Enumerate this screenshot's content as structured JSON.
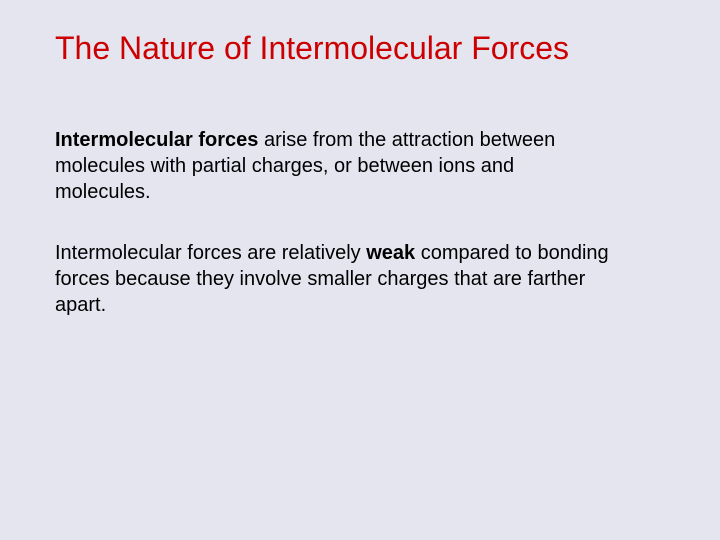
{
  "slide": {
    "title": "The Nature of Intermolecular Forces",
    "paragraph1": {
      "part1_bold": "Intermolecular forces",
      "part2": " arise from the attraction between molecules with partial charges, or between ions and molecules."
    },
    "paragraph2": {
      "part1": "Intermolecular forces are relatively ",
      "part2_bold": "weak",
      "part3": " compared to bonding forces because they involve smaller charges that are farther apart."
    }
  },
  "styling": {
    "background_color": "#e5e5f0",
    "title_color": "#cc0000",
    "title_fontsize": 32,
    "body_color": "#000000",
    "body_fontsize": 20,
    "font_family": "Arial"
  }
}
